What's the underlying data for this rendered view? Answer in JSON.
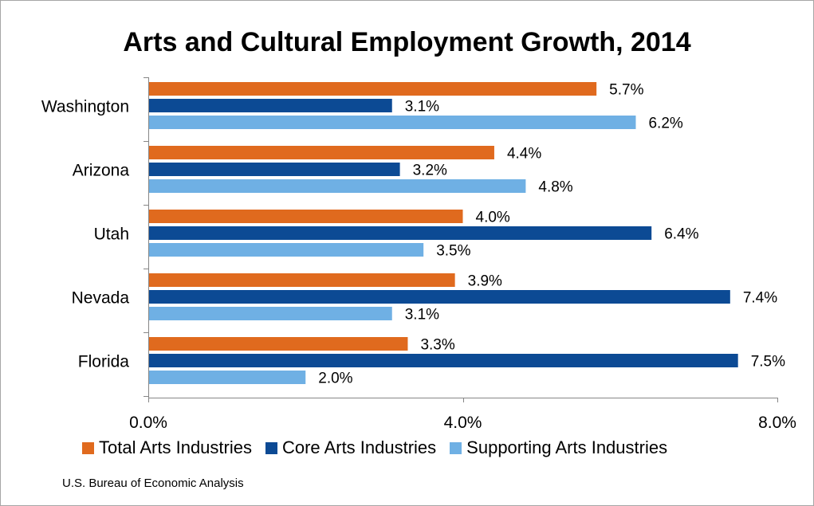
{
  "chart_data": {
    "type": "bar",
    "orientation": "horizontal",
    "title": "Arts and Cultural Employment Growth, 2014",
    "categories": [
      "Washington",
      "Arizona",
      "Utah",
      "Nevada",
      "Florida"
    ],
    "series": [
      {
        "name": "Total Arts Industries",
        "color": "#e06a1e",
        "values": [
          5.7,
          4.4,
          4.0,
          3.9,
          3.3
        ],
        "labels": [
          "5.7%",
          "4.4%",
          "4.0%",
          "3.9%",
          "3.3%"
        ]
      },
      {
        "name": "Core Arts Industries",
        "color": "#0c4a94",
        "values": [
          3.1,
          3.2,
          6.4,
          7.4,
          7.5
        ],
        "labels": [
          "3.1%",
          "3.2%",
          "6.4%",
          "7.4%",
          "7.5%"
        ]
      },
      {
        "name": "Supporting Arts Industries",
        "color": "#6fb0e4",
        "values": [
          6.2,
          4.8,
          3.5,
          3.1,
          2.0
        ],
        "labels": [
          "6.2%",
          "4.8%",
          "3.5%",
          "3.1%",
          "2.0%"
        ]
      }
    ],
    "xlim": [
      0,
      8
    ],
    "xticks": [
      0,
      4,
      8
    ],
    "xtick_labels": [
      "0.0%",
      "4.0%",
      "8.0%"
    ],
    "grid": false,
    "legend_position": "bottom"
  },
  "source": "U.S. Bureau of Economic Analysis"
}
